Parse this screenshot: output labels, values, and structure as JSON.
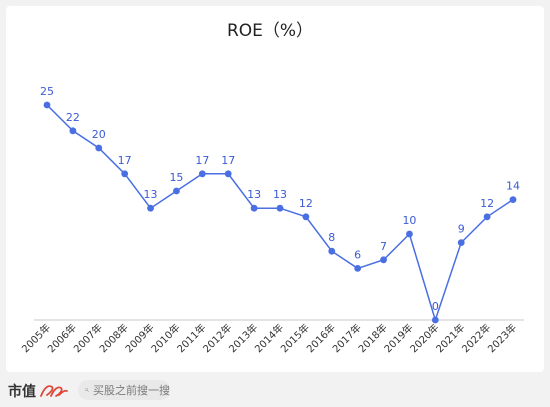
{
  "chart_data": {
    "type": "line",
    "title": "ROE（%）",
    "categories": [
      "2005年",
      "2006年",
      "2007年",
      "2008年",
      "2009年",
      "2010年",
      "2011年",
      "2012年",
      "2013年",
      "2014年",
      "2015年",
      "2016年",
      "2017年",
      "2018年",
      "2019年",
      "2020年",
      "2021年",
      "2022年",
      "2023年"
    ],
    "series": [
      {
        "values": [
          25,
          22,
          20,
          17,
          13,
          15,
          17,
          17,
          13,
          13,
          12,
          8,
          6,
          7,
          10,
          0,
          9,
          12,
          14
        ]
      }
    ],
    "ylim": [
      0,
      25
    ],
    "grid": false,
    "legend": "none",
    "line_color": "#4a6fe3",
    "label_color": "#3b5bd6",
    "axis_color": "#c8c8c8"
  },
  "footer": {
    "brand": "市值",
    "logo_label": "风云",
    "search_placeholder": "买股之前搜一搜"
  }
}
